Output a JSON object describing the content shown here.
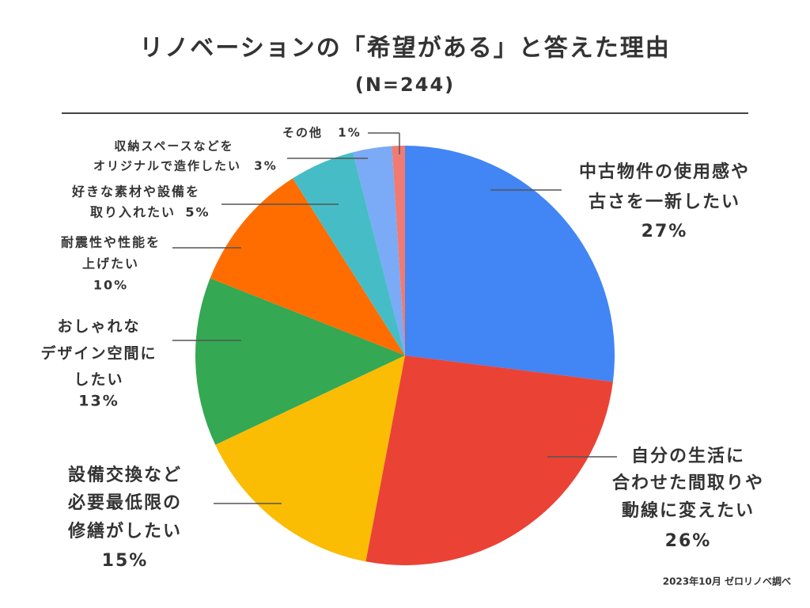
{
  "chart_data": {
    "type": "pie",
    "title": "リノベーションの「希望がある」と答えた理由",
    "subtitle": "(N=244)",
    "footnote": "2023年10月 ゼロリノベ調べ",
    "categories": [
      [
        "中古物件の使用感や",
        "古さを一新したい"
      ],
      [
        "自分の生活に",
        "合わせた間取りや",
        "動線に変えたい"
      ],
      [
        "設備交換など",
        "必要最低限の",
        "修繕がしたい"
      ],
      [
        "おしゃれな",
        "デザイン空間に",
        "したい"
      ],
      [
        "耐震性や性能を",
        "上げたい"
      ],
      [
        "好きな素材や設備を",
        "取り入れたい"
      ],
      [
        "収納スペースなどを",
        "オリジナルで造作したい"
      ],
      [
        "その他"
      ]
    ],
    "values": [
      27,
      26,
      15,
      13,
      10,
      5,
      3,
      1
    ],
    "value_labels": [
      "27%",
      "26%",
      "15%",
      "13%",
      "10%",
      "5%",
      "3%",
      "1%"
    ],
    "colors": [
      "#4285f4",
      "#ea4335",
      "#fbbc04",
      "#34a853",
      "#ff6d01",
      "#46bdc6",
      "#7baaf7",
      "#f07b72"
    ]
  }
}
